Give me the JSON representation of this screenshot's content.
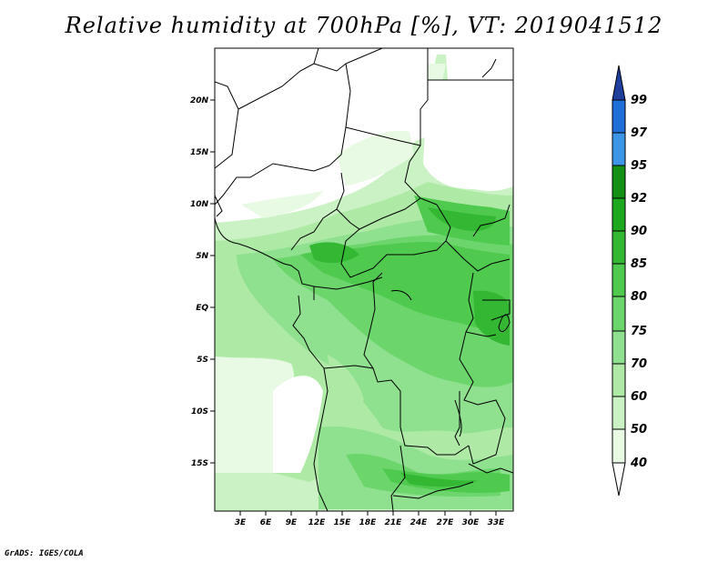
{
  "title": "Relative humidity at 700hPa [%], VT: 2019041512",
  "credit": "GrADS: IGES/COLA",
  "map": {
    "lat_labels": [
      "20N",
      "15N",
      "10N",
      "5N",
      "EQ",
      "5S",
      "10S",
      "15S"
    ],
    "lon_labels": [
      "3E",
      "6E",
      "9E",
      "12E",
      "15E",
      "18E",
      "21E",
      "24E",
      "27E",
      "30E",
      "33E"
    ]
  },
  "colorbar": {
    "levels": [
      "99",
      "97",
      "95",
      "92",
      "90",
      "85",
      "80",
      "75",
      "70",
      "60",
      "50",
      "40"
    ],
    "colors": {
      "above99": "#1e3f9e",
      "97-99": "#1f6fd8",
      "95-97": "#3d95e6",
      "92-95": "#128f14",
      "90-92": "#1ea81e",
      "85-90": "#34b834",
      "80-85": "#4fca4f",
      "75-80": "#6cd66c",
      "70-75": "#8fe08f",
      "60-70": "#aeeaa6",
      "50-60": "#cbf2c4",
      "40-50": "#e8fae4",
      "below40": "#ffffff"
    }
  }
}
